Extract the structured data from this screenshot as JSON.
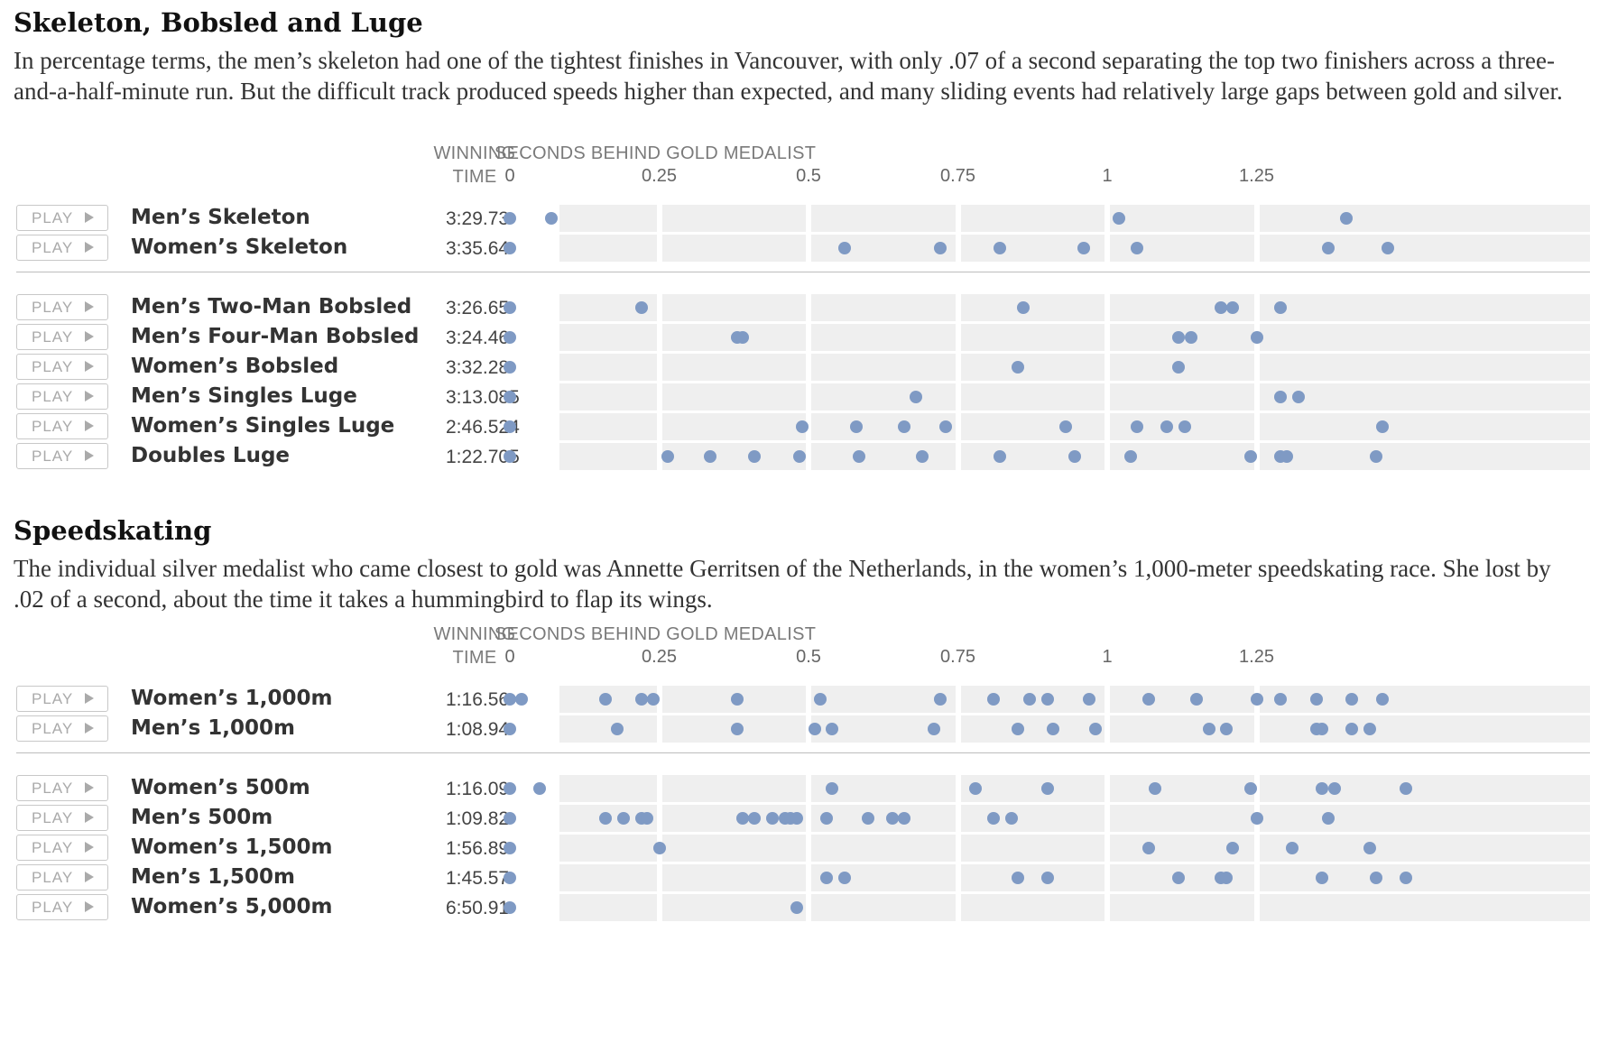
{
  "sections": [
    {
      "title": "Skeleton, Bobsled and Luge",
      "intro": "In percentage terms, the men’s skeleton had one of the tightest finishes in Vancouver, with only .07 of a second separating the top two finishers across a three-and-a-half-minute run. But the difficult track produced speeds higher than expected, and many sliding events had relatively large gaps between gold and silver.",
      "winning_time_label": "WINNING TIME",
      "axis_label": "SECONDS BEHIND GOLD MEDALIST",
      "ticks": [
        "0",
        "0.25",
        "0.5",
        "0.75",
        "1",
        "1.25"
      ],
      "play_label": "PLAY",
      "groups": [
        [
          {
            "event": "Men’s Skeleton",
            "time": "3:29.73"
          },
          {
            "event": "Women’s Skeleton",
            "time": "3:35.64"
          }
        ],
        [
          {
            "event": "Men’s Two-Man Bobsled",
            "time": "3:26.65"
          },
          {
            "event": "Men’s Four-Man Bobsled",
            "time": "3:24.46"
          },
          {
            "event": "Women’s Bobsled",
            "time": "3:32.28"
          },
          {
            "event": "Men’s Singles Luge",
            "time": "3:13.085"
          },
          {
            "event": "Women’s Singles Luge",
            "time": "2:46.524"
          },
          {
            "event": "Doubles Luge",
            "time": "1:22.705"
          }
        ]
      ]
    },
    {
      "title": "Speedskating",
      "intro": "The individual silver medalist who came closest to gold was Annette Gerritsen of the Netherlands, in the women’s 1,000-meter speedskating race. She lost by .02 of a second, about the time it takes a hummingbird to flap its wings.",
      "winning_time_label": "WINNING TIME",
      "axis_label": "SECONDS BEHIND GOLD MEDALIST",
      "ticks": [
        "0",
        "0.25",
        "0.5",
        "0.75",
        "1",
        "1.25"
      ],
      "play_label": "PLAY",
      "groups": [
        [
          {
            "event": "Women’s 1,000m",
            "time": "1:16.56"
          },
          {
            "event": "Men’s 1,000m",
            "time": "1:08.94"
          }
        ],
        [
          {
            "event": "Women’s 500m",
            "time": "1:16.09"
          },
          {
            "event": "Men’s 500m",
            "time": "1:09.82"
          },
          {
            "event": "Women’s 1,500m",
            "time": "1:56.89"
          },
          {
            "event": "Men’s 1,500m",
            "time": "1:45.57"
          },
          {
            "event": "Women’s 5,000m",
            "time": "6:50.91"
          }
        ]
      ]
    }
  ],
  "chart_data": [
    {
      "type": "scatter",
      "title": "Skeleton, Bobsled and Luge",
      "xlabel": "SECONDS BEHIND GOLD MEDALIST",
      "xlim": [
        0,
        1.5
      ],
      "xticks": [
        0,
        0.25,
        0.5,
        0.75,
        1,
        1.25
      ],
      "series": [
        {
          "name": "Men’s Skeleton",
          "winning_time": "3:29.73",
          "values": [
            0,
            0.07,
            1.02,
            1.4
          ]
        },
        {
          "name": "Women’s Skeleton",
          "winning_time": "3:35.64",
          "values": [
            0,
            0.56,
            0.72,
            0.82,
            0.96,
            1.05,
            1.37,
            1.47
          ]
        },
        {
          "name": "Men’s Two-Man Bobsled",
          "winning_time": "3:26.65",
          "values": [
            0,
            0.22,
            0.86,
            1.19,
            1.21,
            1.29
          ]
        },
        {
          "name": "Men’s Four-Man Bobsled",
          "winning_time": "3:24.46",
          "values": [
            0,
            0.38,
            0.39,
            1.12,
            1.14,
            1.25
          ]
        },
        {
          "name": "Women’s Bobsled",
          "winning_time": "3:32.28",
          "values": [
            0,
            0.85,
            1.12
          ]
        },
        {
          "name": "Men’s Singles Luge",
          "winning_time": "3:13.085",
          "values": [
            0,
            0.68,
            1.29,
            1.32
          ]
        },
        {
          "name": "Women’s Singles Luge",
          "winning_time": "2:46.524",
          "values": [
            0,
            0.49,
            0.58,
            0.66,
            0.73,
            0.93,
            1.05,
            1.1,
            1.13,
            1.46
          ]
        },
        {
          "name": "Doubles Luge",
          "winning_time": "1:22.705",
          "values": [
            0,
            0.265,
            0.335,
            0.41,
            0.485,
            0.585,
            0.69,
            0.82,
            0.945,
            1.04,
            1.24,
            1.29,
            1.3,
            1.45
          ]
        }
      ]
    },
    {
      "type": "scatter",
      "title": "Speedskating",
      "xlabel": "SECONDS BEHIND GOLD MEDALIST",
      "xlim": [
        0,
        1.5
      ],
      "xticks": [
        0,
        0.25,
        0.5,
        0.75,
        1,
        1.25
      ],
      "series": [
        {
          "name": "Women’s 1,000m",
          "winning_time": "1:16.56",
          "values": [
            0,
            0.02,
            0.16,
            0.22,
            0.24,
            0.38,
            0.52,
            0.72,
            0.81,
            0.87,
            0.9,
            0.97,
            1.07,
            1.15,
            1.25,
            1.29,
            1.35,
            1.41,
            1.46
          ]
        },
        {
          "name": "Men’s 1,000m",
          "winning_time": "1:08.94",
          "values": [
            0,
            0.18,
            0.38,
            0.51,
            0.54,
            0.71,
            0.85,
            0.91,
            0.98,
            1.17,
            1.2,
            1.35,
            1.36,
            1.41,
            1.44
          ]
        },
        {
          "name": "Women’s 500m",
          "winning_time": "1:16.09",
          "values": [
            0,
            0.05,
            0.54,
            0.78,
            0.9,
            1.08,
            1.24,
            1.36,
            1.38,
            1.5
          ]
        },
        {
          "name": "Men’s 500m",
          "winning_time": "1:09.82",
          "values": [
            0,
            0.16,
            0.19,
            0.22,
            0.23,
            0.39,
            0.41,
            0.44,
            0.46,
            0.47,
            0.48,
            0.53,
            0.6,
            0.64,
            0.66,
            0.81,
            0.84,
            1.25,
            1.37
          ]
        },
        {
          "name": "Women’s 1,500m",
          "winning_time": "1:56.89",
          "values": [
            0,
            0.25,
            1.07,
            1.21,
            1.31,
            1.44
          ]
        },
        {
          "name": "Men’s 1,500m",
          "winning_time": "1:45.57",
          "values": [
            0,
            0.53,
            0.56,
            0.85,
            0.9,
            1.12,
            1.19,
            1.2,
            1.36,
            1.45,
            1.5
          ]
        },
        {
          "name": "Women’s 5,000m",
          "winning_time": "6:50.91",
          "values": [
            0,
            0.48
          ]
        }
      ]
    }
  ]
}
